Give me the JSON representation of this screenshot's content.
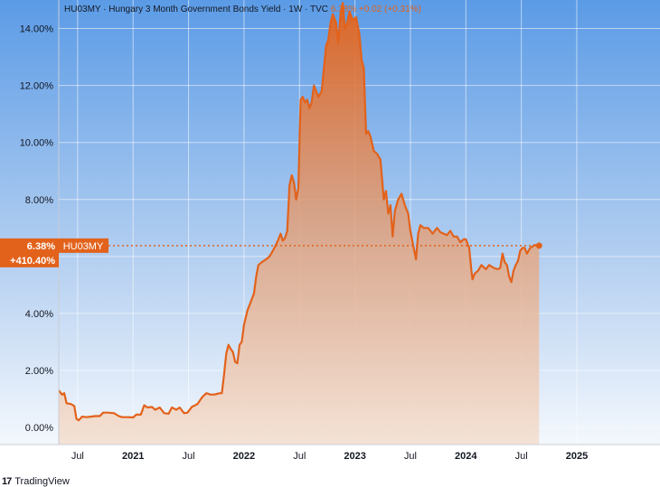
{
  "legend": {
    "symbol": "HU03MY",
    "description": "Hungary 3 Month Government Bonds Yield",
    "interval": "1W",
    "source": "TVC",
    "last": "6.38%",
    "change": "+0.02 (+0.31%)"
  },
  "price_label": {
    "value": "6.38%",
    "symbol": "HU03MY",
    "change_pct": "+410.40%"
  },
  "branding": {
    "logo_text": "17",
    "name": "TradingView"
  },
  "colors": {
    "line": "#e2621b",
    "label_bg": "#e2621b",
    "bg_top": "#5b9be6",
    "bg_bottom": "#ffffff",
    "axis_bg": "#ffffff"
  },
  "chart_data": {
    "type": "area",
    "title": "HU03MY · Hungary 3 Month Government Bonds Yield · 1W · TVC",
    "ylabel": "",
    "xlabel": "",
    "ylim": [
      -0.6,
      15.0
    ],
    "xlim": [
      2020.33,
      2025.75
    ],
    "y_ticks": [
      "0.00%",
      "2.00%",
      "4.00%",
      "6.00%",
      "8.00%",
      "10.00%",
      "12.00%",
      "14.00%"
    ],
    "y_tick_values": [
      0,
      2,
      4,
      6,
      8,
      10,
      12,
      14
    ],
    "x_ticks": [
      {
        "label": "Jul",
        "x": 2020.5,
        "bold": false
      },
      {
        "label": "2021",
        "x": 2021.0,
        "bold": true
      },
      {
        "label": "Jul",
        "x": 2021.5,
        "bold": false
      },
      {
        "label": "2022",
        "x": 2022.0,
        "bold": true
      },
      {
        "label": "Jul",
        "x": 2022.5,
        "bold": false
      },
      {
        "label": "2023",
        "x": 2023.0,
        "bold": true
      },
      {
        "label": "Jul",
        "x": 2023.5,
        "bold": false
      },
      {
        "label": "2024",
        "x": 2024.0,
        "bold": true
      },
      {
        "label": "Jul",
        "x": 2024.5,
        "bold": false
      },
      {
        "label": "2025",
        "x": 2025.0,
        "bold": true
      }
    ],
    "last_value": 6.38,
    "grid": true,
    "series": [
      {
        "values": [
          [
            2020.33,
            1.3
          ],
          [
            2020.36,
            1.15
          ],
          [
            2020.38,
            1.2
          ],
          [
            2020.4,
            0.85
          ],
          [
            2020.44,
            0.82
          ],
          [
            2020.47,
            0.75
          ],
          [
            2020.49,
            0.3
          ],
          [
            2020.51,
            0.25
          ],
          [
            2020.54,
            0.38
          ],
          [
            2020.58,
            0.36
          ],
          [
            2020.62,
            0.38
          ],
          [
            2020.66,
            0.4
          ],
          [
            2020.7,
            0.4
          ],
          [
            2020.73,
            0.52
          ],
          [
            2020.77,
            0.52
          ],
          [
            2020.83,
            0.5
          ],
          [
            2020.87,
            0.4
          ],
          [
            2020.9,
            0.36
          ],
          [
            2020.95,
            0.36
          ],
          [
            2021.0,
            0.35
          ],
          [
            2021.03,
            0.45
          ],
          [
            2021.07,
            0.45
          ],
          [
            2021.1,
            0.78
          ],
          [
            2021.13,
            0.7
          ],
          [
            2021.17,
            0.72
          ],
          [
            2021.2,
            0.62
          ],
          [
            2021.24,
            0.7
          ],
          [
            2021.28,
            0.5
          ],
          [
            2021.32,
            0.48
          ],
          [
            2021.35,
            0.7
          ],
          [
            2021.39,
            0.62
          ],
          [
            2021.42,
            0.7
          ],
          [
            2021.46,
            0.5
          ],
          [
            2021.49,
            0.52
          ],
          [
            2021.53,
            0.72
          ],
          [
            2021.58,
            0.82
          ],
          [
            2021.62,
            1.05
          ],
          [
            2021.66,
            1.2
          ],
          [
            2021.7,
            1.15
          ],
          [
            2021.74,
            1.16
          ],
          [
            2021.78,
            1.2
          ],
          [
            2021.8,
            1.2
          ],
          [
            2021.82,
            1.85
          ],
          [
            2021.84,
            2.6
          ],
          [
            2021.86,
            2.9
          ],
          [
            2021.88,
            2.75
          ],
          [
            2021.9,
            2.65
          ],
          [
            2021.92,
            2.3
          ],
          [
            2021.94,
            2.25
          ],
          [
            2021.96,
            2.9
          ],
          [
            2021.98,
            3.0
          ],
          [
            2022.0,
            3.6
          ],
          [
            2022.03,
            4.1
          ],
          [
            2022.06,
            4.4
          ],
          [
            2022.09,
            4.7
          ],
          [
            2022.11,
            5.3
          ],
          [
            2022.13,
            5.7
          ],
          [
            2022.16,
            5.8
          ],
          [
            2022.2,
            5.9
          ],
          [
            2022.23,
            6.0
          ],
          [
            2022.26,
            6.2
          ],
          [
            2022.28,
            6.35
          ],
          [
            2022.31,
            6.6
          ],
          [
            2022.33,
            6.8
          ],
          [
            2022.35,
            6.55
          ],
          [
            2022.37,
            6.65
          ],
          [
            2022.39,
            6.9
          ],
          [
            2022.41,
            8.5
          ],
          [
            2022.43,
            8.85
          ],
          [
            2022.45,
            8.6
          ],
          [
            2022.47,
            8.0
          ],
          [
            2022.49,
            8.4
          ],
          [
            2022.51,
            11.5
          ],
          [
            2022.53,
            11.6
          ],
          [
            2022.55,
            11.4
          ],
          [
            2022.57,
            11.5
          ],
          [
            2022.59,
            11.2
          ],
          [
            2022.61,
            11.4
          ],
          [
            2022.63,
            12.0
          ],
          [
            2022.65,
            11.8
          ],
          [
            2022.67,
            11.6
          ],
          [
            2022.7,
            11.8
          ],
          [
            2022.74,
            13.4
          ],
          [
            2022.76,
            13.6
          ],
          [
            2022.78,
            14.2
          ],
          [
            2022.8,
            14.5
          ],
          [
            2022.83,
            14.2
          ],
          [
            2022.85,
            13.5
          ],
          [
            2022.87,
            14.5
          ],
          [
            2022.89,
            14.9
          ],
          [
            2022.91,
            14.0
          ],
          [
            2022.93,
            14.2
          ],
          [
            2022.95,
            14.6
          ],
          [
            2022.98,
            14.3
          ],
          [
            2023.01,
            14.4
          ],
          [
            2023.04,
            13.8
          ],
          [
            2023.06,
            12.9
          ],
          [
            2023.08,
            12.6
          ],
          [
            2023.1,
            10.3
          ],
          [
            2023.12,
            10.4
          ],
          [
            2023.14,
            10.2
          ],
          [
            2023.17,
            9.7
          ],
          [
            2023.2,
            9.6
          ],
          [
            2023.23,
            9.4
          ],
          [
            2023.26,
            8.0
          ],
          [
            2023.28,
            8.3
          ],
          [
            2023.3,
            7.5
          ],
          [
            2023.32,
            7.8
          ],
          [
            2023.34,
            6.7
          ],
          [
            2023.36,
            7.6
          ],
          [
            2023.39,
            8.0
          ],
          [
            2023.42,
            8.2
          ],
          [
            2023.45,
            7.8
          ],
          [
            2023.48,
            7.5
          ],
          [
            2023.5,
            6.9
          ],
          [
            2023.53,
            6.3
          ],
          [
            2023.55,
            5.9
          ],
          [
            2023.57,
            6.8
          ],
          [
            2023.59,
            7.1
          ],
          [
            2023.62,
            7.0
          ],
          [
            2023.66,
            7.0
          ],
          [
            2023.7,
            6.8
          ],
          [
            2023.74,
            7.0
          ],
          [
            2023.77,
            6.85
          ],
          [
            2023.8,
            6.8
          ],
          [
            2023.83,
            6.75
          ],
          [
            2023.86,
            6.9
          ],
          [
            2023.89,
            6.7
          ],
          [
            2023.92,
            6.7
          ],
          [
            2023.95,
            6.5
          ],
          [
            2023.98,
            6.6
          ],
          [
            2024.0,
            6.6
          ],
          [
            2024.03,
            6.3
          ],
          [
            2024.05,
            5.5
          ],
          [
            2024.06,
            5.2
          ],
          [
            2024.08,
            5.4
          ],
          [
            2024.11,
            5.5
          ],
          [
            2024.14,
            5.7
          ],
          [
            2024.18,
            5.55
          ],
          [
            2024.21,
            5.7
          ],
          [
            2024.25,
            5.6
          ],
          [
            2024.29,
            5.55
          ],
          [
            2024.31,
            5.6
          ],
          [
            2024.33,
            6.1
          ],
          [
            2024.35,
            5.8
          ],
          [
            2024.37,
            5.7
          ],
          [
            2024.39,
            5.3
          ],
          [
            2024.41,
            5.1
          ],
          [
            2024.43,
            5.5
          ],
          [
            2024.45,
            5.7
          ],
          [
            2024.47,
            5.85
          ],
          [
            2024.49,
            6.2
          ],
          [
            2024.51,
            6.3
          ],
          [
            2024.53,
            6.3
          ],
          [
            2024.55,
            6.1
          ],
          [
            2024.58,
            6.3
          ],
          [
            2024.62,
            6.4
          ],
          [
            2024.66,
            6.38
          ]
        ]
      }
    ]
  }
}
